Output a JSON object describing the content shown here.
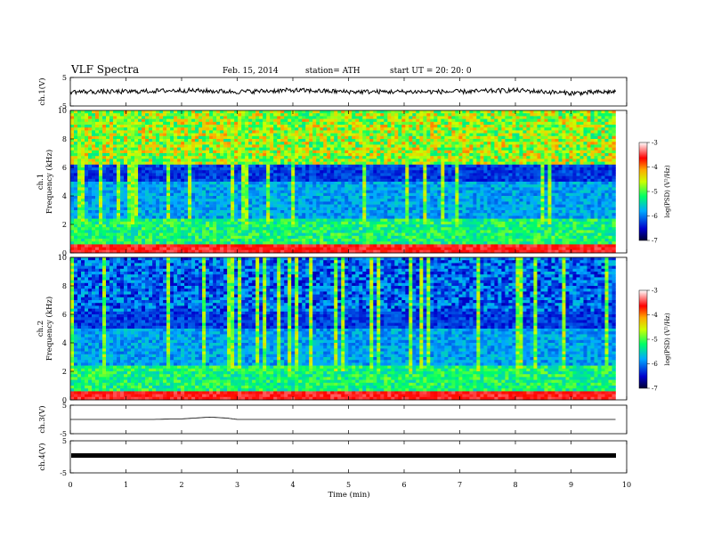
{
  "header": {
    "title": "VLF  Spectra",
    "date": "Feb. 15, 2014",
    "station": "station= ATH",
    "start": "start  UT  =    20: 20: 0"
  },
  "chart_data": [
    {
      "type": "line",
      "panel": "ch1",
      "ylabel": "ch.1(V)",
      "ylim": [
        -5,
        5
      ],
      "yticks": [
        "5",
        "-5"
      ],
      "x": [
        0,
        1,
        2,
        3,
        4,
        5,
        6,
        7,
        8,
        9,
        9.8
      ],
      "values": [
        0,
        0,
        0.5,
        0,
        0.5,
        0,
        0,
        0,
        0.5,
        -0.5,
        0
      ]
    },
    {
      "type": "heatmap",
      "panel": "ch1-spectrogram",
      "ylabel": "ch.1\nFrequency (kHz)",
      "ylim": [
        0,
        10
      ],
      "yticks": [
        "0",
        "2",
        "4",
        "6",
        "8",
        "10"
      ],
      "colorbar": {
        "label": "log(PSD) (V²/Hz)",
        "ticks": [
          "-3",
          "-4",
          "-5",
          "-6",
          "-7"
        ],
        "range": [
          -7,
          -3
        ]
      }
    },
    {
      "type": "heatmap",
      "panel": "ch2-spectrogram",
      "ylabel": "ch.2\nFrequency (kHz)",
      "ylim": [
        0,
        10
      ],
      "yticks": [
        "0",
        "2",
        "4",
        "6",
        "8",
        "10"
      ],
      "colorbar": {
        "label": "log(PSD) (V²/Hz)",
        "ticks": [
          "-3",
          "-4",
          "-5",
          "-6",
          "-7"
        ],
        "range": [
          -7,
          -3
        ]
      }
    },
    {
      "type": "line",
      "panel": "ch3",
      "ylabel": "ch.3(V)",
      "ylim": [
        -5,
        5
      ],
      "yticks": [
        "5",
        "-5"
      ],
      "x": [
        0,
        1.5,
        2.0,
        2.5,
        2.8,
        3.0,
        5.0,
        9.8
      ],
      "values": [
        0,
        0,
        0.2,
        0.8,
        0.5,
        0,
        0,
        0
      ]
    },
    {
      "type": "line",
      "panel": "ch4",
      "ylabel": "ch.4(V)",
      "ylim": [
        -5,
        5
      ],
      "yticks": [
        "5",
        "-5"
      ],
      "x": [
        0,
        9.8
      ],
      "values": [
        0,
        0
      ]
    }
  ],
  "xaxis": {
    "label": "Time  (min)",
    "ticks": [
      "0",
      "1",
      "2",
      "3",
      "4",
      "5",
      "6",
      "7",
      "8",
      "9",
      "10"
    ],
    "xlim": [
      0,
      10
    ]
  }
}
